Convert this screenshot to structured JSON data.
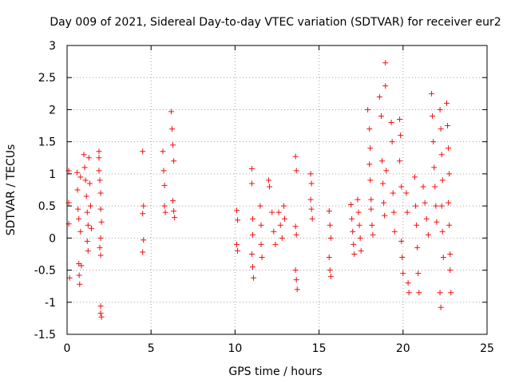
{
  "chart_data": {
    "type": "scatter",
    "title": "Day 009 of 2021, Sidereal Day-to-day VTEC variation (SDTVAR) for receiver eur2",
    "xlabel": "GPS time / hours",
    "ylabel": "SDTVAR / TECUs",
    "xlim": [
      0,
      25
    ],
    "ylim": [
      -1.5,
      3
    ],
    "xticks": [
      "0",
      "5",
      "10",
      "15",
      "20",
      "25"
    ],
    "yticks": [
      "-1.5",
      "-1",
      "-0.5",
      "0",
      "0.5",
      "1",
      "1.5",
      "2",
      "2.5",
      "3"
    ],
    "grid": true,
    "marker": "+",
    "series": [
      {
        "name": "SDTVAR",
        "color": "#ee1111",
        "points": [
          [
            0.1,
            1.05
          ],
          [
            0.1,
            0.55
          ],
          [
            0.1,
            0.22
          ],
          [
            0.15,
            -0.62
          ],
          [
            0.6,
            1.02
          ],
          [
            0.62,
            0.75
          ],
          [
            0.65,
            0.45
          ],
          [
            0.7,
            0.3
          ],
          [
            0.7,
            -0.4
          ],
          [
            0.72,
            -0.58
          ],
          [
            0.75,
            -0.72
          ],
          [
            0.8,
            0.95
          ],
          [
            0.8,
            0.1
          ],
          [
            0.85,
            -0.43
          ],
          [
            1.0,
            1.3
          ],
          [
            1.05,
            1.1
          ],
          [
            1.1,
            0.9
          ],
          [
            1.15,
            0.65
          ],
          [
            1.2,
            0.4
          ],
          [
            1.25,
            0.2
          ],
          [
            1.2,
            -0.05
          ],
          [
            1.25,
            -0.2
          ],
          [
            1.3,
            1.25
          ],
          [
            1.35,
            0.85
          ],
          [
            1.4,
            0.5
          ],
          [
            1.45,
            0.15
          ],
          [
            1.9,
            1.35
          ],
          [
            1.9,
            1.25
          ],
          [
            1.9,
            1.05
          ],
          [
            1.95,
            0.9
          ],
          [
            2.0,
            0.7
          ],
          [
            2.0,
            0.45
          ],
          [
            2.05,
            0.25
          ],
          [
            2.0,
            0.0
          ],
          [
            1.95,
            -0.15
          ],
          [
            2.0,
            -0.27
          ],
          [
            2.0,
            -1.06
          ],
          [
            2.0,
            -1.17
          ],
          [
            2.05,
            -1.23
          ],
          [
            4.5,
            1.35
          ],
          [
            4.55,
            0.5
          ],
          [
            4.5,
            0.38
          ],
          [
            4.55,
            -0.03
          ],
          [
            4.5,
            -0.22
          ],
          [
            5.7,
            1.35
          ],
          [
            5.75,
            1.05
          ],
          [
            5.8,
            0.82
          ],
          [
            5.8,
            0.5
          ],
          [
            5.85,
            0.4
          ],
          [
            6.2,
            1.97
          ],
          [
            6.25,
            1.7
          ],
          [
            6.3,
            1.45
          ],
          [
            6.35,
            1.2
          ],
          [
            6.3,
            0.58
          ],
          [
            6.35,
            0.42
          ],
          [
            6.4,
            0.32
          ],
          [
            10.1,
            0.43
          ],
          [
            10.15,
            0.28
          ],
          [
            10.1,
            -0.1
          ],
          [
            10.15,
            -0.2
          ],
          [
            11.0,
            1.08
          ],
          [
            11.0,
            0.85
          ],
          [
            11.05,
            0.3
          ],
          [
            11.05,
            0.05
          ],
          [
            11.0,
            -0.25
          ],
          [
            11.05,
            -0.45
          ],
          [
            11.1,
            -0.62
          ],
          [
            11.5,
            0.5
          ],
          [
            11.55,
            0.2
          ],
          [
            11.55,
            -0.1
          ],
          [
            11.6,
            -0.3
          ],
          [
            12.0,
            0.9
          ],
          [
            12.05,
            0.8
          ],
          [
            12.2,
            0.4
          ],
          [
            12.3,
            0.1
          ],
          [
            12.4,
            -0.1
          ],
          [
            12.6,
            0.4
          ],
          [
            12.7,
            0.2
          ],
          [
            12.8,
            0.0
          ],
          [
            12.9,
            0.5
          ],
          [
            12.95,
            0.3
          ],
          [
            13.6,
            1.27
          ],
          [
            13.65,
            1.05
          ],
          [
            13.6,
            0.18
          ],
          [
            13.65,
            0.05
          ],
          [
            13.6,
            -0.5
          ],
          [
            13.65,
            -0.65
          ],
          [
            13.7,
            -0.8
          ],
          [
            14.5,
            1.0
          ],
          [
            14.55,
            0.85
          ],
          [
            14.5,
            0.6
          ],
          [
            14.55,
            0.45
          ],
          [
            14.6,
            0.3
          ],
          [
            15.6,
            0.42
          ],
          [
            15.65,
            0.2
          ],
          [
            15.7,
            0.0
          ],
          [
            15.6,
            -0.3
          ],
          [
            15.65,
            -0.5
          ],
          [
            15.7,
            -0.6
          ],
          [
            16.9,
            0.52
          ],
          [
            16.95,
            0.3
          ],
          [
            17.0,
            0.1
          ],
          [
            17.05,
            -0.1
          ],
          [
            17.1,
            -0.25
          ],
          [
            17.3,
            0.6
          ],
          [
            17.35,
            0.4
          ],
          [
            17.4,
            0.2
          ],
          [
            17.45,
            0.0
          ],
          [
            17.5,
            -0.2
          ],
          [
            17.9,
            2.0
          ],
          [
            18.0,
            1.7
          ],
          [
            18.05,
            1.4
          ],
          [
            18.0,
            1.15
          ],
          [
            18.05,
            0.9
          ],
          [
            18.1,
            0.6
          ],
          [
            18.1,
            0.45
          ],
          [
            18.15,
            0.2
          ],
          [
            18.2,
            0.05
          ],
          [
            18.6,
            2.2
          ],
          [
            18.7,
            1.9
          ],
          [
            18.75,
            1.2
          ],
          [
            18.8,
            0.85
          ],
          [
            18.85,
            0.55
          ],
          [
            18.9,
            0.35
          ],
          [
            18.95,
            2.73
          ],
          [
            18.95,
            2.37
          ],
          [
            19.0,
            1.05
          ],
          [
            19.3,
            1.8
          ],
          [
            19.35,
            1.5
          ],
          [
            19.4,
            0.7
          ],
          [
            19.45,
            0.4
          ],
          [
            19.5,
            0.1
          ],
          [
            19.8,
            1.85
          ],
          [
            19.85,
            1.6
          ],
          [
            19.8,
            1.2
          ],
          [
            19.9,
            0.8
          ],
          [
            19.9,
            -0.05
          ],
          [
            19.95,
            -0.3
          ],
          [
            20.0,
            -0.55
          ],
          [
            20.2,
            0.7
          ],
          [
            20.25,
            0.4
          ],
          [
            20.3,
            -0.7
          ],
          [
            20.35,
            -0.85
          ],
          [
            20.7,
            0.95
          ],
          [
            20.75,
            0.5
          ],
          [
            20.8,
            0.2
          ],
          [
            20.85,
            -0.15
          ],
          [
            20.9,
            -0.55
          ],
          [
            20.95,
            -0.85
          ],
          [
            21.2,
            0.8
          ],
          [
            21.3,
            0.55
          ],
          [
            21.4,
            0.3
          ],
          [
            21.5,
            0.05
          ],
          [
            21.7,
            2.25
          ],
          [
            21.75,
            1.9
          ],
          [
            21.8,
            1.5
          ],
          [
            21.85,
            1.1
          ],
          [
            21.9,
            0.8
          ],
          [
            21.95,
            0.5
          ],
          [
            22.0,
            0.25
          ],
          [
            22.2,
            2.0
          ],
          [
            22.25,
            1.7
          ],
          [
            22.3,
            1.3
          ],
          [
            22.35,
            0.9
          ],
          [
            22.3,
            0.5
          ],
          [
            22.35,
            0.1
          ],
          [
            22.4,
            -0.3
          ],
          [
            22.2,
            -0.85
          ],
          [
            22.25,
            -1.08
          ],
          [
            22.6,
            2.1
          ],
          [
            22.65,
            1.75
          ],
          [
            22.7,
            1.4
          ],
          [
            22.75,
            1.0
          ],
          [
            22.7,
            0.55
          ],
          [
            22.75,
            0.2
          ],
          [
            22.8,
            -0.25
          ],
          [
            22.8,
            -0.5
          ],
          [
            22.85,
            -0.85
          ]
        ]
      }
    ]
  }
}
